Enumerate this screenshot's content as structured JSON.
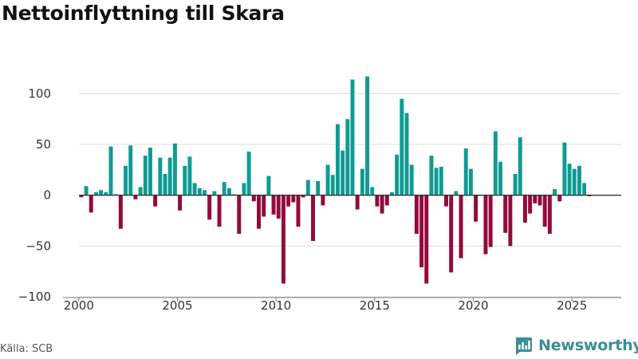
{
  "chart_data": {
    "type": "bar",
    "title": "Nettoinflyttning till Skara",
    "xlabel": "",
    "ylabel": "",
    "x_ticks": [
      "2000",
      "2005",
      "2010",
      "2015",
      "2020",
      "2025"
    ],
    "y_ticks": [
      "−100",
      "−50",
      "0",
      "50",
      "100"
    ],
    "xlim": [
      1999.2,
      2027.5
    ],
    "ylim": [
      -100,
      120
    ],
    "grid": true,
    "colors": {
      "positive": "#0f9b94",
      "negative": "#920a3c",
      "zero_line": "#333333",
      "grid": "#dddddd"
    },
    "series": [
      {
        "name": "Nettoinflyttning",
        "x": [
          2000.125,
          2000.375,
          2000.625,
          2000.875,
          2001.125,
          2001.375,
          2001.625,
          2001.875,
          2002.125,
          2002.375,
          2002.625,
          2002.875,
          2003.125,
          2003.375,
          2003.625,
          2003.875,
          2004.125,
          2004.375,
          2004.625,
          2004.875,
          2005.125,
          2005.375,
          2005.625,
          2005.875,
          2006.125,
          2006.375,
          2006.625,
          2006.875,
          2007.125,
          2007.375,
          2007.625,
          2007.875,
          2008.125,
          2008.375,
          2008.625,
          2008.875,
          2009.125,
          2009.375,
          2009.625,
          2009.875,
          2010.125,
          2010.375,
          2010.625,
          2010.875,
          2011.125,
          2011.375,
          2011.625,
          2011.875,
          2012.125,
          2012.375,
          2012.625,
          2012.875,
          2013.125,
          2013.375,
          2013.625,
          2013.875,
          2014.125,
          2014.375,
          2014.625,
          2014.875,
          2015.125,
          2015.375,
          2015.625,
          2015.875,
          2016.125,
          2016.375,
          2016.625,
          2016.875,
          2017.125,
          2017.375,
          2017.625,
          2017.875,
          2018.125,
          2018.375,
          2018.625,
          2018.875,
          2019.125,
          2019.375,
          2019.625,
          2019.875,
          2020.125,
          2020.375,
          2020.625,
          2020.875,
          2021.125,
          2021.375,
          2021.625,
          2021.875,
          2022.125,
          2022.375,
          2022.625,
          2022.875,
          2023.125,
          2023.375,
          2023.625,
          2023.875,
          2024.125,
          2024.375,
          2024.625,
          2024.875,
          2025.125,
          2025.375,
          2025.625,
          2025.875
        ],
        "values": [
          -2,
          9,
          -17,
          3,
          5,
          3,
          48,
          1,
          -33,
          29,
          49,
          -4,
          8,
          39,
          47,
          -11,
          37,
          21,
          37,
          51,
          -15,
          29,
          38,
          12,
          7,
          5,
          -24,
          4,
          -31,
          13,
          7,
          1,
          -38,
          12,
          43,
          -6,
          -33,
          -21,
          19,
          -19,
          -23,
          -87,
          -11,
          -7,
          -31,
          -2,
          15,
          -45,
          14,
          -10,
          30,
          20,
          70,
          44,
          75,
          114,
          -14,
          26,
          117,
          8,
          -11,
          -18,
          -10,
          3,
          40,
          95,
          81,
          30,
          -38,
          -71,
          -87,
          39,
          27,
          28,
          -11,
          -76,
          4,
          -62,
          46,
          26,
          -26,
          0,
          -58,
          -51,
          63,
          33,
          -37,
          -50,
          21,
          57,
          -27,
          -18,
          -8,
          -10,
          -31,
          -38,
          6,
          -6,
          52,
          31,
          26,
          29,
          12,
          -1
        ]
      }
    ]
  },
  "footer": {
    "source": "Källa: SCB",
    "brand": "Newsworthy"
  }
}
